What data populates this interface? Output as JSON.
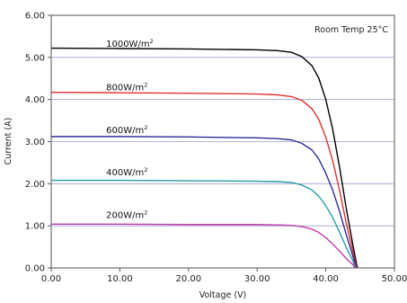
{
  "chart_data": {
    "type": "line",
    "title": "",
    "xlabel": "Voltage (V)",
    "ylabel": "Current (A)",
    "annotation": "Room Temp 25°C",
    "xlim": [
      0,
      50
    ],
    "ylim": [
      0,
      6
    ],
    "xticks": [
      0,
      10,
      20,
      30,
      40,
      50
    ],
    "yticks": [
      0,
      1,
      2,
      3,
      4,
      5,
      6
    ],
    "xtick_labels": [
      "0.00",
      "10.00",
      "20.00",
      "30.00",
      "40.00",
      "50.00"
    ],
    "ytick_labels": [
      "0.00",
      "1.00",
      "2.00",
      "3.00",
      "4.00",
      "5.00",
      "6.00"
    ],
    "grid": "horizontal",
    "series": [
      {
        "name": "1000W/m2",
        "label_main": "1000W/m",
        "label_sup": "2",
        "color": "#000000",
        "label_at": [
          8.0,
          5.25
        ],
        "x": [
          0,
          10,
          20,
          30,
          33,
          35,
          36.5,
          38,
          39,
          40,
          41,
          42,
          43,
          44,
          44.6
        ],
        "y": [
          5.22,
          5.21,
          5.2,
          5.18,
          5.16,
          5.12,
          5.02,
          4.8,
          4.5,
          4.0,
          3.3,
          2.4,
          1.4,
          0.5,
          0.0
        ]
      },
      {
        "name": "800W/m2",
        "label_main": "800W/m",
        "label_sup": "2",
        "color": "#e03030",
        "label_at": [
          8.0,
          4.22
        ],
        "x": [
          0,
          10,
          20,
          30,
          33,
          35,
          36.5,
          38,
          39,
          40,
          41,
          42,
          43,
          44,
          44.5
        ],
        "y": [
          4.17,
          4.16,
          4.15,
          4.13,
          4.11,
          4.07,
          3.98,
          3.78,
          3.52,
          3.1,
          2.55,
          1.85,
          1.05,
          0.35,
          0.0
        ]
      },
      {
        "name": "600W/m2",
        "label_main": "600W/m",
        "label_sup": "2",
        "color": "#2e2e9a",
        "label_at": [
          8.0,
          3.2
        ],
        "x": [
          0,
          10,
          20,
          30,
          33,
          35,
          36.5,
          38,
          39,
          40,
          41,
          42,
          43,
          44,
          44.4
        ],
        "y": [
          3.12,
          3.12,
          3.11,
          3.09,
          3.07,
          3.04,
          2.96,
          2.8,
          2.58,
          2.25,
          1.85,
          1.35,
          0.78,
          0.25,
          0.0
        ]
      },
      {
        "name": "400W/m2",
        "label_main": "400W/m",
        "label_sup": "2",
        "color": "#2a9aa8",
        "label_at": [
          8.0,
          2.2
        ],
        "x": [
          0,
          10,
          20,
          30,
          33,
          35,
          36.5,
          38,
          39,
          40,
          41,
          42,
          43,
          44,
          44.3
        ],
        "y": [
          2.08,
          2.08,
          2.07,
          2.06,
          2.05,
          2.03,
          1.97,
          1.85,
          1.7,
          1.48,
          1.2,
          0.85,
          0.48,
          0.15,
          0.0
        ]
      },
      {
        "name": "200W/m2",
        "label_main": "200W/m",
        "label_sup": "2",
        "color": "#c03aaa",
        "label_at": [
          8.0,
          1.18
        ],
        "x": [
          0,
          10,
          20,
          30,
          33,
          35,
          36.5,
          38,
          39,
          40,
          41,
          42,
          43,
          44,
          44.2
        ],
        "y": [
          1.04,
          1.04,
          1.03,
          1.03,
          1.02,
          1.01,
          0.98,
          0.92,
          0.84,
          0.72,
          0.57,
          0.4,
          0.22,
          0.07,
          0.0
        ]
      }
    ]
  }
}
